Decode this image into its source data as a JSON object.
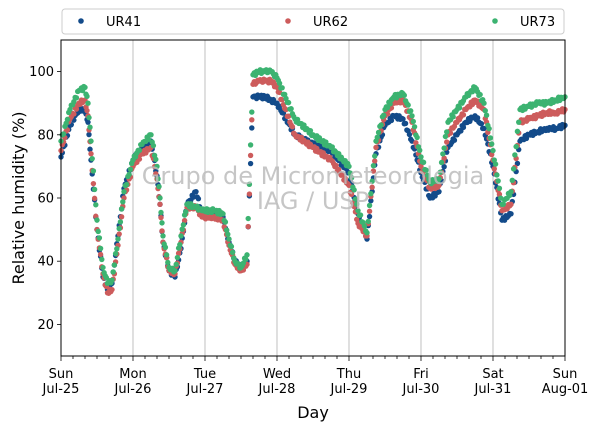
{
  "chart_data": {
    "type": "scatter",
    "xlabel": "Day",
    "ylabel": "Relative humidity (%)",
    "ylim": [
      10,
      110
    ],
    "xlim": [
      "2021-07-25",
      "2021-08-01"
    ],
    "y_ticks": [
      20,
      40,
      60,
      80,
      100
    ],
    "x_ticks": [
      {
        "date": "2021-07-25",
        "day": "Sun",
        "label": "Jul-25"
      },
      {
        "date": "2021-07-26",
        "day": "Mon",
        "label": "Jul-26"
      },
      {
        "date": "2021-07-27",
        "day": "Tue",
        "label": "Jul-27"
      },
      {
        "date": "2021-07-28",
        "day": "Wed",
        "label": "Jul-28"
      },
      {
        "date": "2021-07-29",
        "day": "Thu",
        "label": "Jul-29"
      },
      {
        "date": "2021-07-30",
        "day": "Fri",
        "label": "Jul-30"
      },
      {
        "date": "2021-07-31",
        "day": "Sat",
        "label": "Jul-31"
      },
      {
        "date": "2021-08-01",
        "day": "Sun",
        "label": "Aug-01"
      }
    ],
    "grid": "vertical lines at day ticks",
    "legend": "top, above plot, 3 columns",
    "watermark": [
      "Grupo de Micrometeorologia",
      "IAG / USP"
    ],
    "series": [
      {
        "name": "UR41",
        "color": "#134b8a",
        "x": [
          "2021-07-25 00:00",
          "2021-07-25 03:00",
          "2021-07-25 06:00",
          "2021-07-25 08:00",
          "2021-07-25 09:00",
          "2021-07-25 10:00",
          "2021-07-25 12:00",
          "2021-07-25 14:00",
          "2021-07-25 15:30",
          "2021-07-25 17:00",
          "2021-07-25 19:00",
          "2021-07-25 21:00",
          "2021-07-26 00:00",
          "2021-07-26 03:00",
          "2021-07-26 06:00",
          "2021-07-26 08:00",
          "2021-07-26 09:00",
          "2021-07-26 10:00",
          "2021-07-26 12:00",
          "2021-07-26 14:00",
          "2021-07-26 16:00",
          "2021-07-26 18:00",
          "2021-07-26 21:00",
          "2021-07-26 23:00",
          "2021-07-27 03:00",
          "2021-07-27 06:00",
          "2021-07-27 08:00",
          "2021-07-27 10:00",
          "2021-07-27 12:00",
          "2021-07-27 14:00",
          "2021-07-27 16:00",
          "2021-07-27 18:00",
          "2021-07-27 20:00",
          "2021-07-27 22:00",
          "2021-07-28 00:00",
          "2021-07-28 06:00",
          "2021-07-28 12:00",
          "2021-07-28 18:00",
          "2021-07-29 00:00",
          "2021-07-29 03:00",
          "2021-07-29 06:00",
          "2021-07-29 09:00",
          "2021-07-29 12:00",
          "2021-07-29 15:00",
          "2021-07-29 18:00",
          "2021-07-29 21:00",
          "2021-07-30 00:00",
          "2021-07-30 03:00",
          "2021-07-30 06:00",
          "2021-07-30 09:00",
          "2021-07-30 12:00",
          "2021-07-30 15:00",
          "2021-07-30 18:00",
          "2021-07-30 21:00",
          "2021-07-31 00:00",
          "2021-07-31 03:00",
          "2021-07-31 06:00",
          "2021-07-31 09:00",
          "2021-07-31 12:00",
          "2021-07-31 15:00",
          "2021-07-31 18:00",
          "2021-07-31 21:00",
          "2021-08-01 00:00"
        ],
        "y": [
          73,
          83,
          88,
          88,
          84,
          72,
          50,
          35,
          31,
          33,
          48,
          63,
          72,
          76,
          78,
          67,
          58,
          46,
          37,
          35,
          44,
          58,
          62,
          55,
          55,
          54,
          46,
          40,
          38,
          40,
          92,
          92,
          92,
          91,
          90,
          80,
          77,
          75,
          68,
          55,
          47,
          74,
          83,
          86,
          85,
          78,
          68,
          60,
          62,
          76,
          80,
          84,
          86,
          82,
          70,
          53,
          55,
          78,
          80,
          81,
          82,
          82,
          83
        ]
      },
      {
        "name": "UR62",
        "color": "#cd5c5c",
        "x": [
          "2021-07-25 00:00",
          "2021-07-25 03:00",
          "2021-07-25 06:00",
          "2021-07-25 08:00",
          "2021-07-25 09:00",
          "2021-07-25 10:00",
          "2021-07-25 12:00",
          "2021-07-25 14:00",
          "2021-07-25 15:30",
          "2021-07-25 17:00",
          "2021-07-25 19:00",
          "2021-07-25 21:00",
          "2021-07-26 00:00",
          "2021-07-26 03:00",
          "2021-07-26 06:00",
          "2021-07-26 08:00",
          "2021-07-26 09:00",
          "2021-07-26 10:00",
          "2021-07-26 12:00",
          "2021-07-26 14:00",
          "2021-07-26 16:00",
          "2021-07-26 18:00",
          "2021-07-26 21:00",
          "2021-07-26 23:00",
          "2021-07-27 03:00",
          "2021-07-27 06:00",
          "2021-07-27 08:00",
          "2021-07-27 10:00",
          "2021-07-27 12:00",
          "2021-07-27 14:00",
          "2021-07-27 16:00",
          "2021-07-27 18:00",
          "2021-07-27 20:00",
          "2021-07-27 22:00",
          "2021-07-28 00:00",
          "2021-07-28 06:00",
          "2021-07-28 12:00",
          "2021-07-28 18:00",
          "2021-07-29 00:00",
          "2021-07-29 03:00",
          "2021-07-29 06:00",
          "2021-07-29 09:00",
          "2021-07-29 12:00",
          "2021-07-29 15:00",
          "2021-07-29 18:00",
          "2021-07-29 21:00",
          "2021-07-30 00:00",
          "2021-07-30 03:00",
          "2021-07-30 06:00",
          "2021-07-30 09:00",
          "2021-07-30 12:00",
          "2021-07-30 15:00",
          "2021-07-30 18:00",
          "2021-07-30 21:00",
          "2021-07-31 00:00",
          "2021-07-31 03:00",
          "2021-07-31 06:00",
          "2021-07-31 09:00",
          "2021-07-31 12:00",
          "2021-07-31 15:00",
          "2021-07-31 18:00",
          "2021-07-31 21:00",
          "2021-08-01 00:00"
        ],
        "y": [
          75,
          85,
          90,
          91,
          86,
          74,
          50,
          36,
          30,
          31,
          45,
          60,
          70,
          74,
          76,
          66,
          58,
          46,
          37,
          36,
          46,
          57,
          57,
          54,
          54,
          53,
          45,
          39,
          37,
          39,
          96,
          97,
          97,
          97,
          95,
          80,
          76,
          72,
          64,
          52,
          48,
          76,
          86,
          90,
          91,
          84,
          70,
          63,
          64,
          80,
          84,
          88,
          91,
          88,
          72,
          56,
          58,
          84,
          85,
          86,
          87,
          87,
          88
        ]
      },
      {
        "name": "UR73",
        "color": "#3cb371",
        "x": [
          "2021-07-25 00:00",
          "2021-07-25 03:00",
          "2021-07-25 06:00",
          "2021-07-25 08:00",
          "2021-07-25 09:00",
          "2021-07-25 10:00",
          "2021-07-25 12:00",
          "2021-07-25 14:00",
          "2021-07-25 15:30",
          "2021-07-25 17:00",
          "2021-07-25 19:00",
          "2021-07-25 21:00",
          "2021-07-26 00:00",
          "2021-07-26 03:00",
          "2021-07-26 06:00",
          "2021-07-26 08:00",
          "2021-07-26 09:00",
          "2021-07-26 10:00",
          "2021-07-26 12:00",
          "2021-07-26 14:00",
          "2021-07-26 16:00",
          "2021-07-26 18:00",
          "2021-07-26 21:00",
          "2021-07-26 23:00",
          "2021-07-27 03:00",
          "2021-07-27 06:00",
          "2021-07-27 08:00",
          "2021-07-27 10:00",
          "2021-07-27 12:00",
          "2021-07-27 14:00",
          "2021-07-27 16:00",
          "2021-07-27 18:00",
          "2021-07-27 20:00",
          "2021-07-27 22:00",
          "2021-07-28 00:00",
          "2021-07-28 06:00",
          "2021-07-28 12:00",
          "2021-07-28 18:00",
          "2021-07-29 00:00",
          "2021-07-29 03:00",
          "2021-07-29 06:00",
          "2021-07-29 09:00",
          "2021-07-29 12:00",
          "2021-07-29 15:00",
          "2021-07-29 18:00",
          "2021-07-29 21:00",
          "2021-07-30 00:00",
          "2021-07-30 03:00",
          "2021-07-30 06:00",
          "2021-07-30 09:00",
          "2021-07-30 12:00",
          "2021-07-30 15:00",
          "2021-07-30 18:00",
          "2021-07-30 21:00",
          "2021-07-31 00:00",
          "2021-07-31 03:00",
          "2021-07-31 06:00",
          "2021-07-31 09:00",
          "2021-07-31 12:00",
          "2021-07-31 15:00",
          "2021-07-31 18:00",
          "2021-07-31 21:00",
          "2021-08-01 00:00"
        ],
        "y": [
          78,
          88,
          94,
          95,
          90,
          78,
          53,
          38,
          33,
          34,
          47,
          62,
          72,
          77,
          80,
          70,
          60,
          48,
          38,
          37,
          48,
          58,
          57,
          56,
          56,
          55,
          47,
          40,
          38,
          42,
          99,
          100,
          100,
          100,
          98,
          85,
          80,
          76,
          70,
          56,
          49,
          78,
          88,
          92,
          93,
          86,
          73,
          65,
          66,
          84,
          88,
          92,
          95,
          90,
          75,
          58,
          62,
          88,
          89,
          90,
          90,
          91,
          92
        ]
      }
    ]
  }
}
